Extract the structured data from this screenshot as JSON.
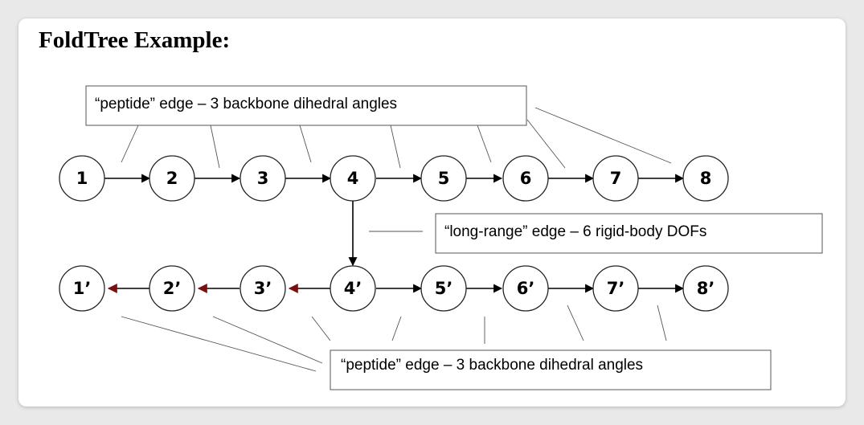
{
  "title": "FoldTree Example:",
  "callouts": {
    "top": "“peptide” edge – 3 backbone dihedral angles",
    "middle": "“long-range” edge – 6 rigid-body DOFs",
    "bottom": "“peptide” edge – 3 backbone dihedral angles"
  },
  "rows": {
    "top": [
      "1",
      "2",
      "3",
      "4",
      "5",
      "6",
      "7",
      "8"
    ],
    "bottom": [
      "1’",
      "2’",
      "3’",
      "4’",
      "5’",
      "6’",
      "7’",
      "8’"
    ]
  },
  "colors": {
    "arrow": "#000000",
    "reverse_arrow": "#7a0f0f",
    "node_stroke": "#222222"
  }
}
